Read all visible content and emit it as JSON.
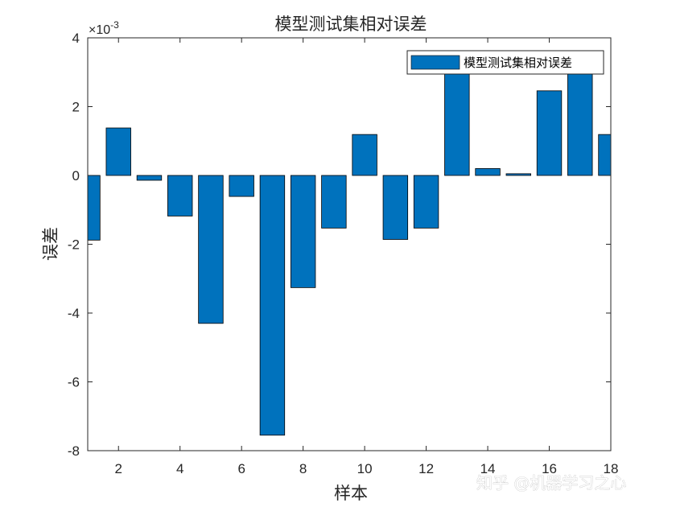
{
  "chart_data": {
    "type": "bar",
    "title": "模型测试集相对误差",
    "xlabel": "样本",
    "ylabel": "误差",
    "y_exponent_label": "×10",
    "y_exponent_power": "-3",
    "x": [
      1,
      2,
      3,
      4,
      5,
      6,
      7,
      8,
      9,
      10,
      11,
      12,
      13,
      14,
      15,
      16,
      17,
      18
    ],
    "values": [
      -0.00188,
      0.00138,
      -0.00014,
      -0.00118,
      -0.0043,
      -0.00061,
      -0.00755,
      -0.00326,
      -0.00153,
      0.00119,
      -0.00186,
      -0.00153,
      0.0034,
      0.0002,
      5e-05,
      0.00246,
      0.0031,
      0.00119
    ],
    "xlim": [
      1,
      18
    ],
    "ylim": [
      -0.008,
      0.004
    ],
    "xticks": [
      "2",
      "4",
      "6",
      "8",
      "10",
      "12",
      "14",
      "16",
      "18"
    ],
    "yticks": [
      "-8",
      "-6",
      "-4",
      "-2",
      "0",
      "2",
      "4"
    ],
    "legend": [
      "模型测试集相对误差"
    ],
    "legend_position": "top-right",
    "bar_color": "#0072BD",
    "grid": false
  },
  "watermark": "知乎 @机器学习之心"
}
